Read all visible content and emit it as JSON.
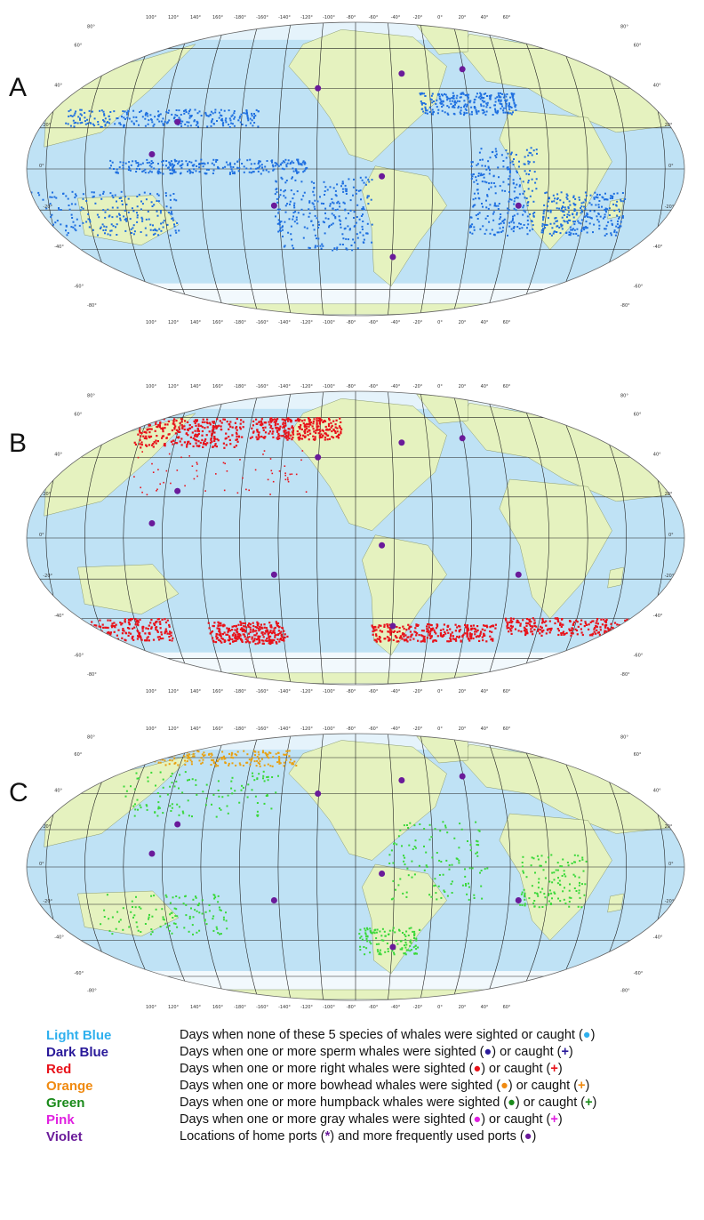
{
  "panels": [
    {
      "id": "A",
      "label": "A",
      "species": "sperm",
      "dot_color": "#1e6fe0"
    },
    {
      "id": "B",
      "label": "B",
      "species": "right",
      "dot_color": "#e8121a"
    },
    {
      "id": "C",
      "label": "C",
      "species": "bowhead_humpback",
      "dot_color": "#39d839",
      "dot_color_2": "#e8a010"
    }
  ],
  "map": {
    "ocean_color": "#bfe2f5",
    "land_color": "#e5f2bf",
    "grid_color": "#222222",
    "port_color": "#6a1a9a",
    "top_longitudes": [
      "100°",
      "120°",
      "140°",
      "160°",
      "-180°",
      "-160°",
      "-140°",
      "-120°",
      "-100°",
      "-80°",
      "-60°",
      "-40°",
      "-20°",
      "0°",
      "20°",
      "40°",
      "60°"
    ],
    "bottom_longitudes": [
      "100°",
      "120°",
      "140°",
      "160°",
      "-180°",
      "-160°",
      "-140°",
      "-120°",
      "-100°",
      "-80°",
      "-60°",
      "-40°",
      "-20°",
      "0°",
      "20°",
      "40°",
      "60°"
    ],
    "latitudes_left": [
      "80°",
      "60°",
      "40°",
      "20°",
      "0°",
      "-20°",
      "-40°",
      "-60°",
      "-80°"
    ],
    "latitudes_right": [
      "80°",
      "60°",
      "40°",
      "20°",
      "0°",
      "-20°",
      "-40°",
      "-60°",
      "-80°"
    ]
  },
  "legend": [
    {
      "color_name": "Light Blue",
      "color": "#2fb0ee",
      "text_before": "Days when none of these 5 species of whales were sighted or caught (",
      "mark1": "●",
      "text_mid": "",
      "mark2": "",
      "text_after": ")"
    },
    {
      "color_name": "Dark Blue",
      "color": "#2a1a9a",
      "text_before": "Days when one or more sperm whales were sighted (",
      "mark1": "●",
      "text_mid": ") or caught (",
      "mark2": "+",
      "text_after": ")"
    },
    {
      "color_name": "Red",
      "color": "#e8121a",
      "text_before": "Days when one or more right whales were sighted (",
      "mark1": "●",
      "text_mid": ") or caught (",
      "mark2": "+",
      "text_after": ")"
    },
    {
      "color_name": "Orange",
      "color": "#f08a10",
      "text_before": "Days when one or more bowhead whales were sighted (",
      "mark1": "●",
      "text_mid": ") or caught (",
      "mark2": "+",
      "text_after": ")"
    },
    {
      "color_name": "Green",
      "color": "#1a8a1a",
      "text_before": "Days when one or more humpback whales were sighted (",
      "mark1": "●",
      "text_mid": ") or caught (",
      "mark2": "+",
      "text_after": ")"
    },
    {
      "color_name": "Pink",
      "color": "#e020e0",
      "text_before": "Days when one or more gray whales were sighted (",
      "mark1": "●",
      "text_mid": ") or caught (",
      "mark2": "+",
      "text_after": ")"
    },
    {
      "color_name": "Violet",
      "color": "#6a1a9a",
      "text_before": "Locations of home ports (",
      "mark1": "*",
      "text_mid": ") and more frequently used ports (",
      "mark2": "●",
      "text_after": ")"
    }
  ]
}
